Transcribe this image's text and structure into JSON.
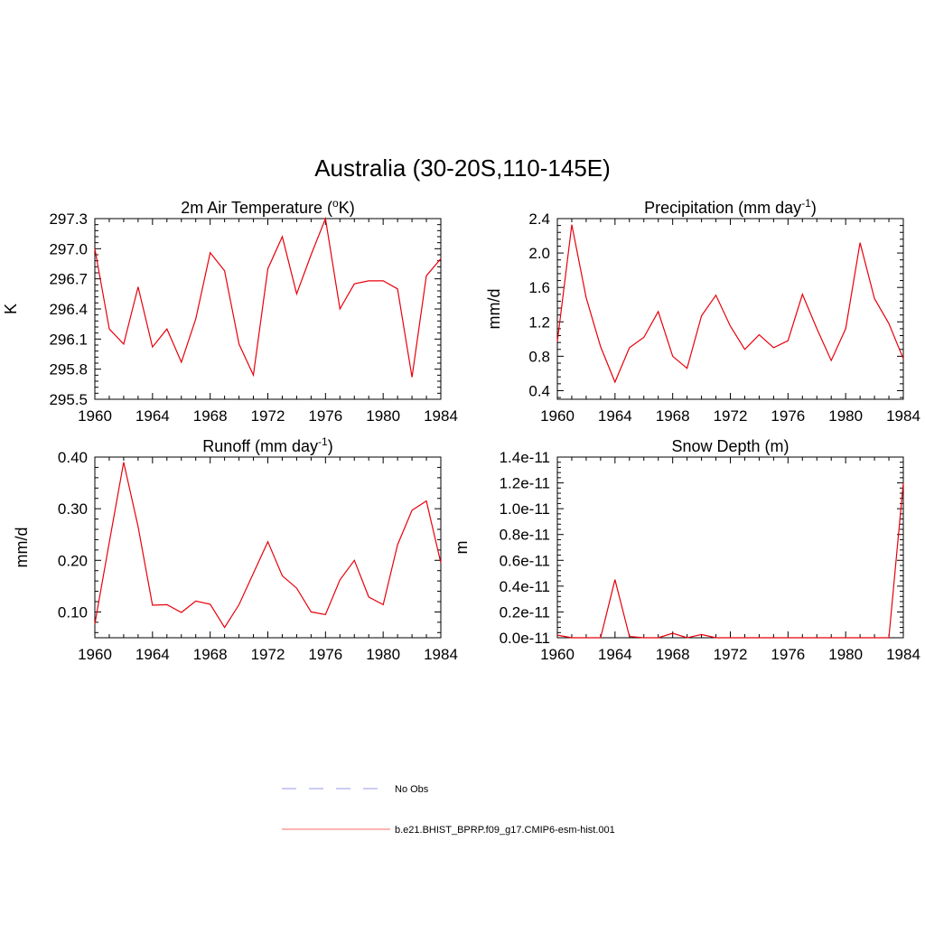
{
  "figure": {
    "title": "Australia (30-20S,110-145E)"
  },
  "legend": {
    "entries": [
      {
        "label": "No Obs",
        "color": "#9999ee",
        "dash": true
      },
      {
        "label": "b.e21.BHIST_BPRP.f09_g17.CMIP6-esm-hist.001",
        "color": "#ff6666",
        "dash": false
      }
    ]
  },
  "chart_data": [
    {
      "type": "line",
      "title": "2m Air Temperature (",
      "title_sup": "o",
      "title_after": "K)",
      "ylabel": "K",
      "xlim": [
        1960,
        1984
      ],
      "ylim": [
        295.5,
        297.3
      ],
      "xticks": [
        1960,
        1964,
        1968,
        1972,
        1976,
        1980,
        1984
      ],
      "yticks": [
        295.5,
        295.8,
        296.1,
        296.4,
        296.7,
        297.0,
        297.3
      ],
      "ytick_labels": [
        "295.5",
        "295.8",
        "296.1",
        "296.4",
        "296.7",
        "297.0",
        "297.3"
      ],
      "color": "#e8000b",
      "x": [
        1960,
        1961,
        1962,
        1963,
        1964,
        1965,
        1966,
        1967,
        1968,
        1969,
        1970,
        1971,
        1972,
        1973,
        1974,
        1975,
        1976,
        1977,
        1978,
        1979,
        1980,
        1981,
        1982,
        1983,
        1984
      ],
      "y": [
        297.0,
        296.2,
        296.05,
        296.62,
        296.02,
        296.2,
        295.87,
        296.3,
        296.96,
        296.78,
        296.05,
        295.74,
        296.8,
        297.12,
        296.55,
        296.94,
        297.3,
        296.4,
        296.65,
        296.68,
        296.68,
        296.6,
        295.72,
        296.73,
        296.9
      ]
    },
    {
      "type": "line",
      "title": "Precipitation (mm day",
      "title_sup": "-1",
      "title_after": ")",
      "ylabel": "mm/d",
      "xlim": [
        1960,
        1984
      ],
      "ylim": [
        0.3,
        2.4
      ],
      "xticks": [
        1960,
        1964,
        1968,
        1972,
        1976,
        1980,
        1984
      ],
      "yticks": [
        0.4,
        0.8,
        1.2,
        1.6,
        2.0,
        2.4
      ],
      "ytick_labels": [
        "0.4",
        "0.8",
        "1.2",
        "1.6",
        "2.0",
        "2.4"
      ],
      "color": "#e8000b",
      "x": [
        1960,
        1961,
        1962,
        1963,
        1964,
        1965,
        1966,
        1967,
        1968,
        1969,
        1970,
        1971,
        1972,
        1973,
        1974,
        1975,
        1976,
        1977,
        1978,
        1979,
        1980,
        1981,
        1982,
        1983,
        1984
      ],
      "y": [
        0.97,
        2.33,
        1.48,
        0.91,
        0.5,
        0.9,
        1.02,
        1.32,
        0.8,
        0.66,
        1.27,
        1.51,
        1.15,
        0.88,
        1.05,
        0.9,
        0.98,
        1.52,
        1.12,
        0.75,
        1.12,
        2.12,
        1.47,
        1.18,
        0.77
      ]
    },
    {
      "type": "line",
      "title": "Runoff (mm day",
      "title_sup": "-1",
      "title_after": ")",
      "ylabel": "mm/d",
      "xlim": [
        1960,
        1984
      ],
      "ylim": [
        0.05,
        0.4
      ],
      "xticks": [
        1960,
        1964,
        1968,
        1972,
        1976,
        1980,
        1984
      ],
      "yticks": [
        0.1,
        0.2,
        0.3,
        0.4
      ],
      "ytick_labels": [
        "0.10",
        "0.20",
        "0.30",
        "0.40"
      ],
      "color": "#e8000b",
      "x": [
        1960,
        1961,
        1962,
        1963,
        1964,
        1965,
        1966,
        1967,
        1968,
        1969,
        1970,
        1971,
        1972,
        1973,
        1974,
        1975,
        1976,
        1977,
        1978,
        1979,
        1980,
        1981,
        1982,
        1983,
        1984
      ],
      "y": [
        0.077,
        0.235,
        0.39,
        0.265,
        0.113,
        0.114,
        0.099,
        0.121,
        0.115,
        0.07,
        0.114,
        0.175,
        0.236,
        0.17,
        0.146,
        0.1,
        0.095,
        0.162,
        0.2,
        0.129,
        0.114,
        0.23,
        0.297,
        0.315,
        0.195
      ]
    },
    {
      "type": "line",
      "title": "Snow Depth (m)",
      "title_sup": "",
      "title_after": "",
      "ylabel": "m",
      "xlim": [
        1960,
        1984
      ],
      "ylim": [
        0.0,
        1.4
      ],
      "xticks": [
        1960,
        1964,
        1968,
        1972,
        1976,
        1980,
        1984
      ],
      "yticks": [
        0.0,
        0.2,
        0.4,
        0.6,
        0.8,
        1.0,
        1.2,
        1.4
      ],
      "ytick_labels": [
        "0.0e-11",
        "0.2e-11",
        "0.4e-11",
        "0.6e-11",
        "0.8e-11",
        "1.0e-11",
        "1.2e-11",
        "1.4e-11"
      ],
      "color": "#e8000b",
      "x": [
        1960,
        1961,
        1962,
        1963,
        1964,
        1965,
        1966,
        1967,
        1968,
        1969,
        1970,
        1971,
        1972,
        1973,
        1974,
        1975,
        1976,
        1977,
        1978,
        1979,
        1980,
        1981,
        1982,
        1983,
        1984
      ],
      "y": [
        0.02,
        0.0,
        0.0,
        0.0,
        0.45,
        0.01,
        0.0,
        0.0,
        0.035,
        0.0,
        0.025,
        0.0,
        0.0,
        0.0,
        0.0,
        0.0,
        0.0,
        0.0,
        0.0,
        0.0,
        0.0,
        0.0,
        0.0,
        0.0,
        1.2
      ]
    }
  ]
}
